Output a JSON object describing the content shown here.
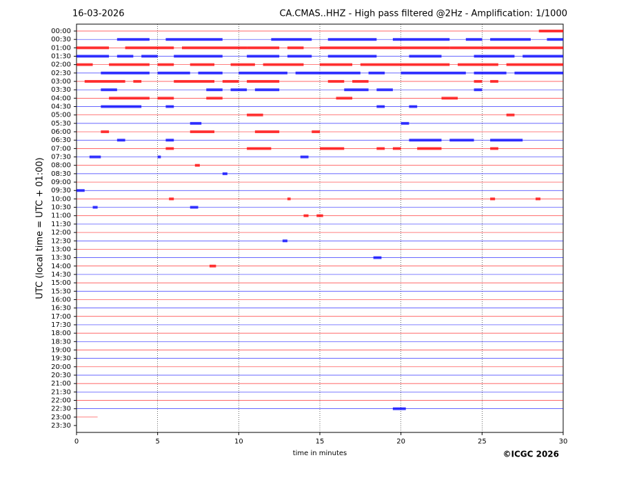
{
  "chart_data": {
    "type": "helicorder",
    "date": "16-03-2026",
    "title": "CA.CMAS..HHZ - High pass filtered @2Hz - Amplification: 1/1000",
    "ylabel": "UTC (local time = UTC + 01:00)",
    "xlabel": "time in minutes",
    "credit": "©ICGC 2026",
    "xlim": [
      0,
      30
    ],
    "xticks": [
      0,
      5,
      10,
      15,
      20,
      25,
      30
    ],
    "grid": true,
    "colors": [
      "#ff0000",
      "#0000ff"
    ],
    "rows": [
      "00:00",
      "00:30",
      "01:00",
      "01:30",
      "02:00",
      "02:30",
      "03:00",
      "03:30",
      "04:00",
      "04:30",
      "05:00",
      "05:30",
      "06:00",
      "06:30",
      "07:00",
      "07:30",
      "08:00",
      "08:30",
      "09:00",
      "09:30",
      "10:00",
      "10:30",
      "11:00",
      "11:30",
      "12:00",
      "12:30",
      "13:00",
      "13:30",
      "14:00",
      "14:30",
      "15:00",
      "15:30",
      "16:00",
      "16:30",
      "17:00",
      "17:30",
      "18:00",
      "18:30",
      "19:00",
      "19:30",
      "20:00",
      "20:30",
      "21:00",
      "21:30",
      "22:00",
      "22:30",
      "23:00",
      "23:30"
    ],
    "traces": [
      {
        "end": 30,
        "bursts": [
          [
            28.5,
            30
          ]
        ]
      },
      {
        "end": 30,
        "bursts": [
          [
            2.5,
            4.5
          ],
          [
            5.5,
            9
          ],
          [
            12,
            14.5
          ],
          [
            15.5,
            18.5
          ],
          [
            19.5,
            23
          ],
          [
            24,
            25
          ],
          [
            25.5,
            28
          ],
          [
            29,
            30
          ]
        ]
      },
      {
        "end": 30,
        "bursts": [
          [
            0,
            2
          ],
          [
            3,
            6
          ],
          [
            6.5,
            10.5
          ],
          [
            10.5,
            12.5
          ],
          [
            13,
            14
          ],
          [
            15,
            23
          ],
          [
            23,
            25
          ],
          [
            25,
            30
          ]
        ]
      },
      {
        "end": 30,
        "bursts": [
          [
            0,
            2
          ],
          [
            2.5,
            3.5
          ],
          [
            4,
            5
          ],
          [
            6,
            9
          ],
          [
            10.5,
            12.5
          ],
          [
            13,
            14.5
          ],
          [
            15.5,
            18.5
          ],
          [
            20.5,
            22.5
          ],
          [
            24.5,
            27
          ],
          [
            27.5,
            30
          ]
        ]
      },
      {
        "end": 30,
        "bursts": [
          [
            0,
            1
          ],
          [
            2,
            4.5
          ],
          [
            5,
            6
          ],
          [
            7,
            8.5
          ],
          [
            9.5,
            11
          ],
          [
            11.5,
            14
          ],
          [
            15,
            17
          ],
          [
            17.5,
            23
          ],
          [
            23.5,
            26
          ],
          [
            26.5,
            30
          ]
        ]
      },
      {
        "end": 30,
        "bursts": [
          [
            1.5,
            4.5
          ],
          [
            5,
            7
          ],
          [
            7.5,
            9
          ],
          [
            10,
            13
          ],
          [
            13.5,
            17.5
          ],
          [
            18,
            19
          ],
          [
            20,
            24
          ],
          [
            24.5,
            26.5
          ],
          [
            27,
            30
          ]
        ]
      },
      {
        "end": 30,
        "bursts": [
          [
            0.5,
            3
          ],
          [
            3.5,
            4
          ],
          [
            6,
            8.5
          ],
          [
            9,
            10
          ],
          [
            10.5,
            12.5
          ],
          [
            15.5,
            16.5
          ],
          [
            17,
            18
          ],
          [
            24.5,
            25
          ],
          [
            25.5,
            26
          ]
        ]
      },
      {
        "end": 30,
        "bursts": [
          [
            1.5,
            2.5
          ],
          [
            8,
            9
          ],
          [
            9.5,
            10.5
          ],
          [
            11,
            12.5
          ],
          [
            16.5,
            18
          ],
          [
            18.5,
            19.5
          ],
          [
            24.5,
            25
          ]
        ]
      },
      {
        "end": 30,
        "bursts": [
          [
            2,
            4.5
          ],
          [
            5,
            6
          ],
          [
            8,
            9
          ],
          [
            16,
            17
          ],
          [
            22.5,
            23.5
          ]
        ]
      },
      {
        "end": 30,
        "bursts": [
          [
            1.5,
            4
          ],
          [
            5.5,
            6
          ],
          [
            18.5,
            19
          ],
          [
            20.5,
            21
          ]
        ]
      },
      {
        "end": 30,
        "bursts": [
          [
            10.5,
            11.5
          ],
          [
            26.5,
            27
          ]
        ]
      },
      {
        "end": 30,
        "bursts": [
          [
            7,
            7.7
          ],
          [
            20,
            20.5
          ]
        ]
      },
      {
        "end": 30,
        "bursts": [
          [
            1.5,
            2
          ],
          [
            7,
            8.5
          ],
          [
            11,
            12.5
          ],
          [
            14.5,
            15
          ]
        ]
      },
      {
        "end": 30,
        "bursts": [
          [
            2.5,
            3
          ],
          [
            5.5,
            6
          ],
          [
            20.5,
            22.5
          ],
          [
            23,
            24.5
          ],
          [
            25.5,
            27.5
          ]
        ]
      },
      {
        "end": 30,
        "bursts": [
          [
            5.5,
            6
          ],
          [
            10.5,
            12
          ],
          [
            15,
            16.5
          ],
          [
            18.5,
            19
          ],
          [
            19.5,
            20
          ],
          [
            21,
            22.5
          ],
          [
            25.5,
            26
          ]
        ]
      },
      {
        "end": 30,
        "bursts": [
          [
            0.8,
            1.5
          ],
          [
            5,
            5.2
          ],
          [
            13.8,
            14.3
          ]
        ]
      },
      {
        "end": 30,
        "bursts": [
          [
            7.3,
            7.6
          ]
        ]
      },
      {
        "end": 30,
        "bursts": [
          [
            9,
            9.3
          ]
        ]
      },
      {
        "end": 30,
        "bursts": []
      },
      {
        "end": 30,
        "bursts": [
          [
            0,
            0.5
          ]
        ]
      },
      {
        "end": 30,
        "bursts": [
          [
            5.7,
            6
          ],
          [
            13,
            13.2
          ],
          [
            25.5,
            25.8
          ],
          [
            28.3,
            28.6
          ]
        ]
      },
      {
        "end": 30,
        "bursts": [
          [
            1,
            1.3
          ],
          [
            7,
            7.5
          ]
        ]
      },
      {
        "end": 30,
        "bursts": [
          [
            14,
            14.3
          ],
          [
            14.8,
            15.2
          ]
        ]
      },
      {
        "end": 30,
        "bursts": []
      },
      {
        "end": 30,
        "bursts": []
      },
      {
        "end": 30,
        "bursts": [
          [
            12.7,
            13
          ]
        ]
      },
      {
        "end": 30,
        "bursts": []
      },
      {
        "end": 30,
        "bursts": [
          [
            18.3,
            18.8
          ]
        ]
      },
      {
        "end": 30,
        "bursts": [
          [
            8.2,
            8.6
          ]
        ]
      },
      {
        "end": 30,
        "bursts": []
      },
      {
        "end": 30,
        "bursts": []
      },
      {
        "end": 30,
        "bursts": []
      },
      {
        "end": 30,
        "bursts": []
      },
      {
        "end": 30,
        "bursts": []
      },
      {
        "end": 30,
        "bursts": []
      },
      {
        "end": 30,
        "bursts": []
      },
      {
        "end": 30,
        "bursts": []
      },
      {
        "end": 30,
        "bursts": []
      },
      {
        "end": 30,
        "bursts": []
      },
      {
        "end": 30,
        "bursts": []
      },
      {
        "end": 30,
        "bursts": []
      },
      {
        "end": 30,
        "bursts": []
      },
      {
        "end": 30,
        "bursts": []
      },
      {
        "end": 30,
        "bursts": []
      },
      {
        "end": 30,
        "bursts": []
      },
      {
        "end": 30,
        "bursts": [
          [
            19.5,
            20.3
          ]
        ]
      },
      {
        "end": 1.3,
        "bursts": []
      },
      {
        "end": null,
        "bursts": []
      }
    ]
  }
}
